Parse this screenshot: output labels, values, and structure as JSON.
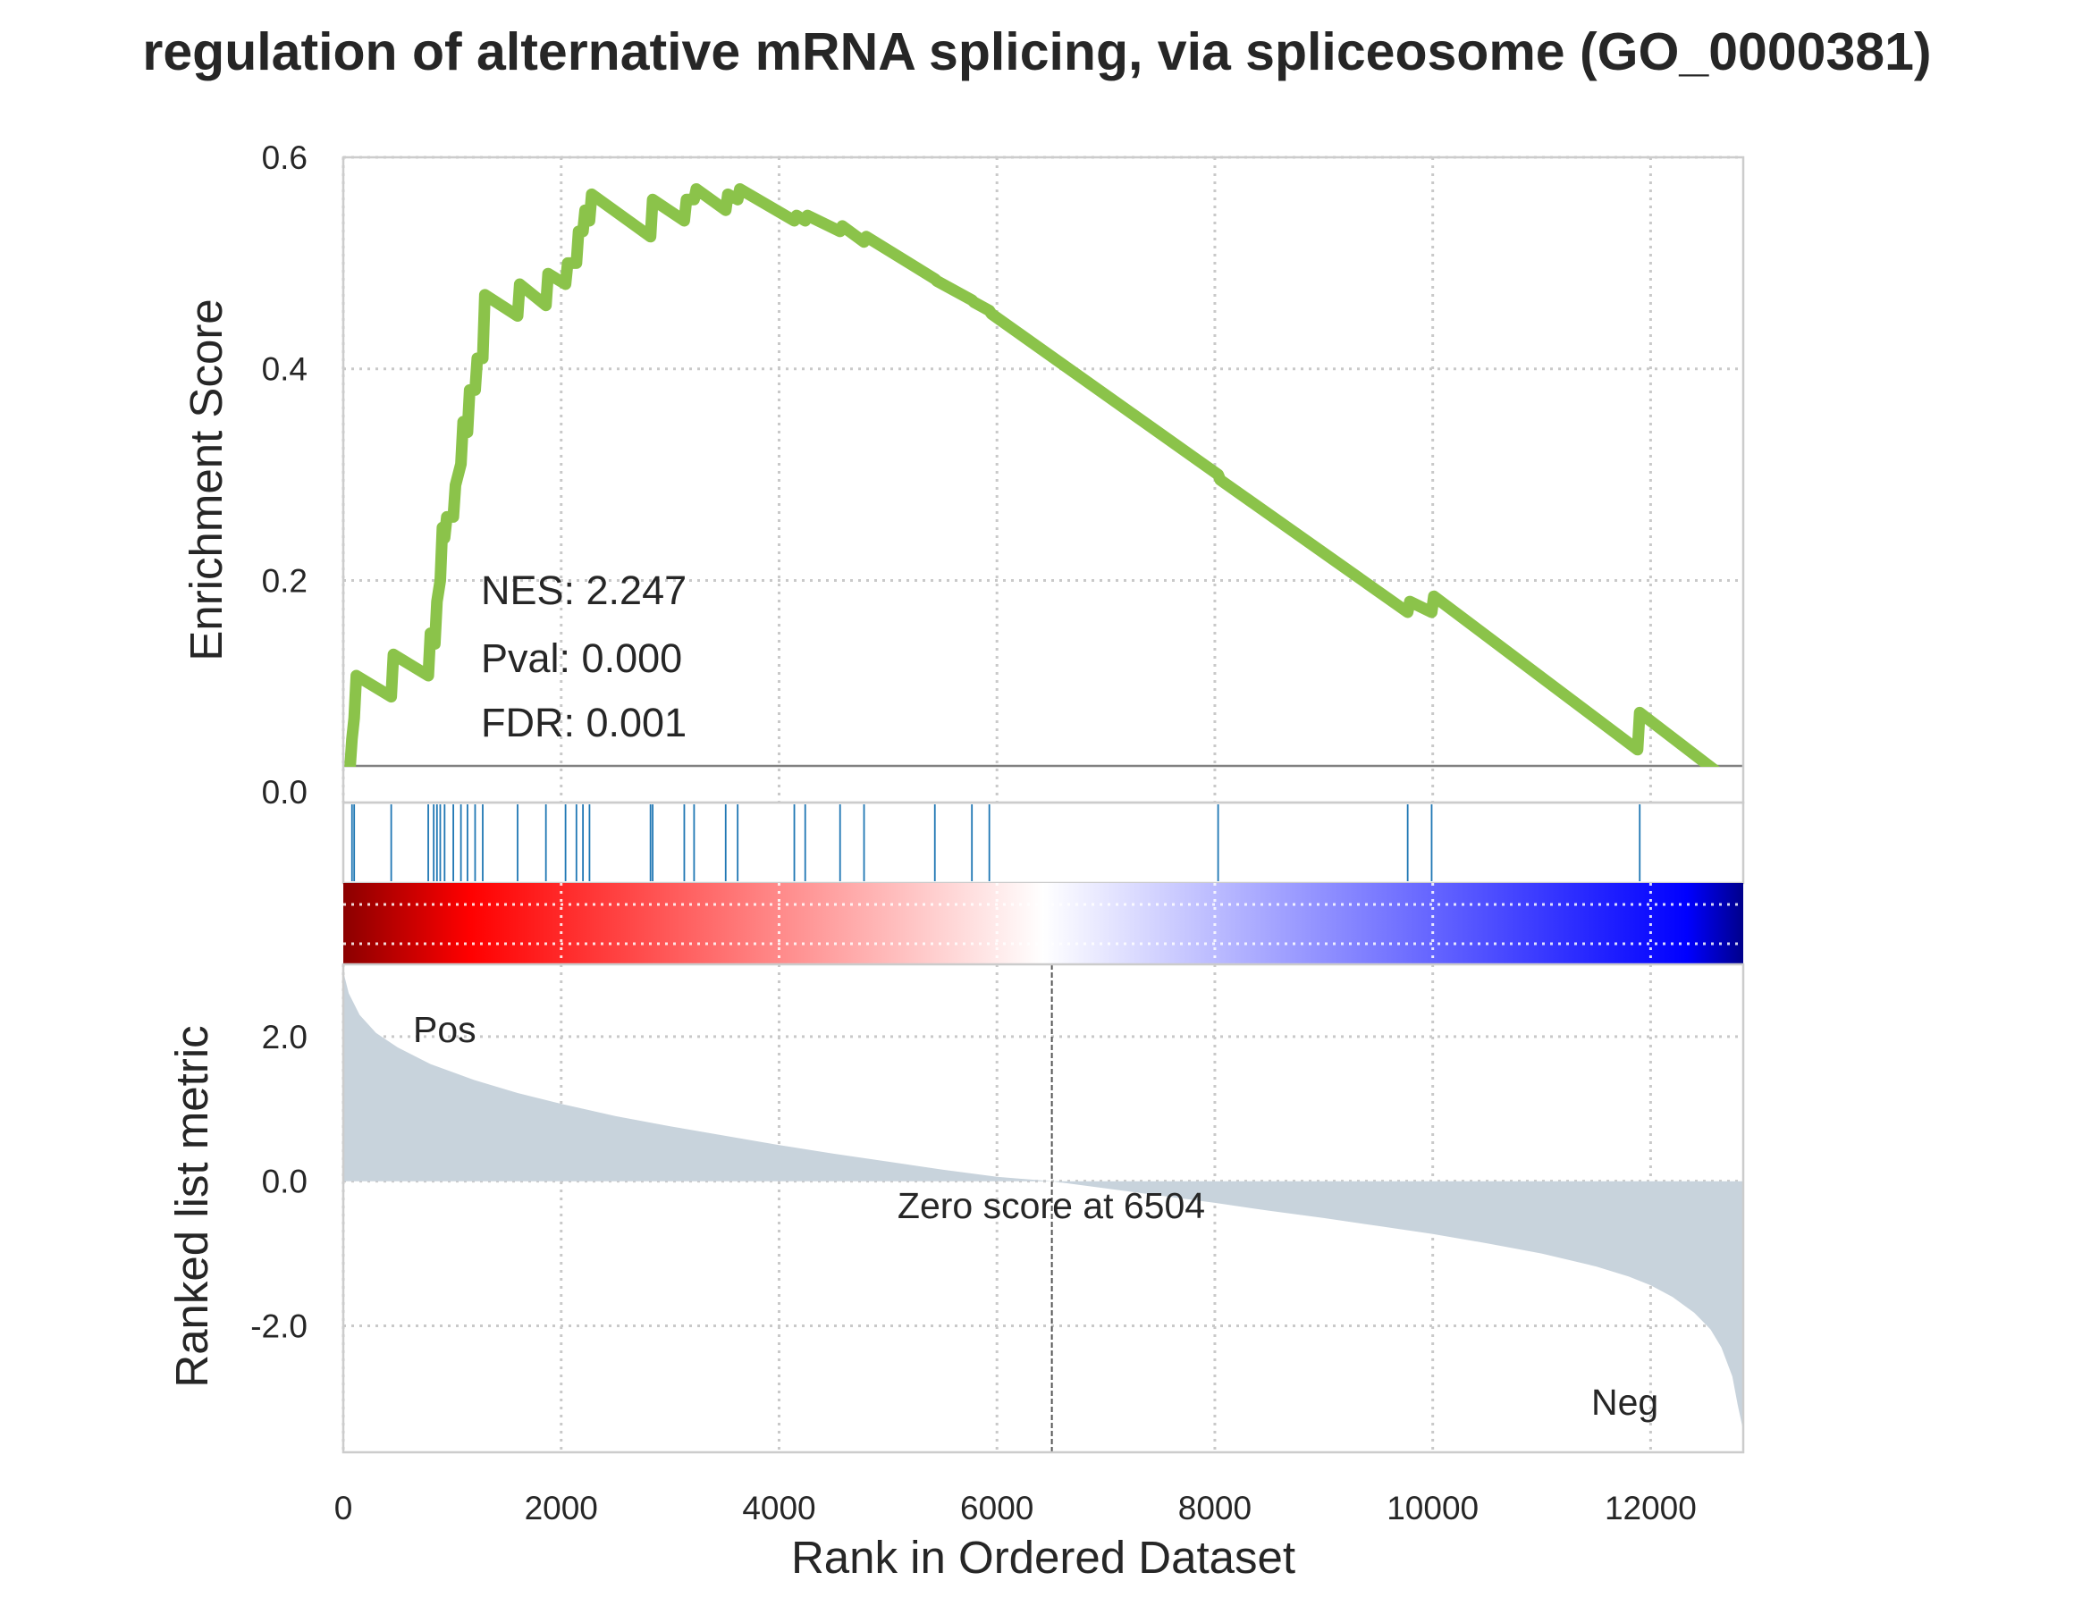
{
  "chart_data": {
    "type": "area",
    "title": "regulation of alternative mRNA splicing, via spliceosome (GO_0000381)",
    "xlabel": "Rank in Ordered Dataset",
    "x_ticks": [
      "0",
      "2000",
      "4000",
      "6000",
      "8000",
      "10000",
      "12000"
    ],
    "xlim": [
      0,
      12850
    ],
    "enrichment": {
      "ylabel": "Enrichment Score",
      "y_ticks": [
        "0.0",
        "0.2",
        "0.4",
        "0.6"
      ],
      "ylim": [
        -0.01,
        0.6
      ],
      "line_color": "#8bc34a",
      "x": [
        0,
        60,
        80,
        100,
        120,
        440,
        460,
        780,
        800,
        840,
        860,
        890,
        910,
        930,
        950,
        1010,
        1030,
        1080,
        1100,
        1140,
        1160,
        1210,
        1230,
        1280,
        1300,
        1600,
        1620,
        1860,
        1880,
        2040,
        2060,
        2140,
        2160,
        2200,
        2220,
        2260,
        2280,
        2820,
        2840,
        3130,
        3150,
        3220,
        3240,
        3510,
        3530,
        3620,
        3640,
        4140,
        4160,
        4240,
        4260,
        4560,
        4580,
        4780,
        4800,
        5430,
        5450,
        5770,
        5790,
        5930,
        5950,
        8030,
        8050,
        9770,
        9790,
        9990,
        10010,
        11880,
        11900,
        12850
      ],
      "y": [
        0.0,
        0.02,
        0.05,
        0.07,
        0.11,
        0.09,
        0.13,
        0.11,
        0.15,
        0.14,
        0.18,
        0.2,
        0.25,
        0.24,
        0.26,
        0.26,
        0.29,
        0.31,
        0.35,
        0.34,
        0.38,
        0.38,
        0.41,
        0.41,
        0.47,
        0.45,
        0.48,
        0.46,
        0.49,
        0.48,
        0.5,
        0.5,
        0.53,
        0.53,
        0.55,
        0.54,
        0.565,
        0.525,
        0.56,
        0.54,
        0.56,
        0.56,
        0.57,
        0.55,
        0.565,
        0.56,
        0.57,
        0.54,
        0.545,
        0.54,
        0.545,
        0.53,
        0.535,
        0.52,
        0.525,
        0.485,
        0.483,
        0.465,
        0.463,
        0.455,
        0.452,
        0.3,
        0.295,
        0.17,
        0.18,
        0.17,
        0.185,
        0.04,
        0.075,
        0.0
      ]
    },
    "stats": {
      "nes": "NES: 2.247",
      "pval": "Pval: 0.000",
      "fdr": "FDR: 0.001"
    },
    "hits": {
      "color": "#1f77b4",
      "positions": [
        80,
        100,
        440,
        780,
        830,
        860,
        890,
        930,
        1010,
        1080,
        1140,
        1210,
        1280,
        1600,
        1860,
        2040,
        2140,
        2200,
        2260,
        2820,
        2840,
        3130,
        3220,
        3510,
        3620,
        4140,
        4240,
        4560,
        4780,
        5430,
        5770,
        5930,
        8030,
        9770,
        9990,
        11900
      ]
    },
    "colorbar": {
      "colors": [
        "#8b0000",
        "#ff0000",
        "#ffffff",
        "#0000ff",
        "#00008b"
      ],
      "stops": [
        0,
        0.09,
        0.5,
        0.96,
        1
      ]
    },
    "ranked": {
      "ylabel": "Ranked list metric",
      "y_ticks": [
        "2.0",
        "0.0",
        "-2.0"
      ],
      "ylim": [
        -3.75,
        3.0
      ],
      "fill_color": "#c8d3dc",
      "x": [
        0,
        50,
        150,
        300,
        500,
        800,
        1200,
        1600,
        2000,
        2500,
        3000,
        3500,
        4000,
        4500,
        5000,
        5500,
        6000,
        6504,
        7000,
        7500,
        8000,
        8500,
        9000,
        9500,
        10000,
        10500,
        11000,
        11500,
        11800,
        12000,
        12200,
        12400,
        12550,
        12650,
        12750,
        12800,
        12850
      ],
      "values": [
        2.9,
        2.6,
        2.3,
        2.05,
        1.85,
        1.62,
        1.4,
        1.22,
        1.07,
        0.9,
        0.76,
        0.63,
        0.5,
        0.38,
        0.27,
        0.16,
        0.06,
        0.0,
        -0.1,
        -0.2,
        -0.3,
        -0.41,
        -0.51,
        -0.62,
        -0.73,
        -0.86,
        -1.0,
        -1.18,
        -1.32,
        -1.44,
        -1.6,
        -1.82,
        -2.05,
        -2.3,
        -2.7,
        -3.1,
        -3.45
      ],
      "zero_rank": 6504,
      "zero_label": "Zero score at 6504",
      "pos_label": "Pos",
      "pos_color": "#ff0000",
      "neg_label": "Neg",
      "neg_color": "#0000ff"
    }
  }
}
